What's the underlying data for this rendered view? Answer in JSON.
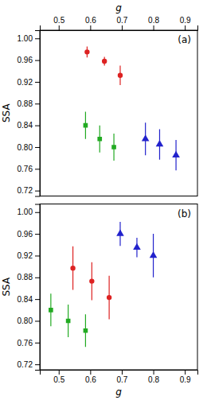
{
  "chart_data": [
    {
      "type": "scatter",
      "xlabel": "g",
      "ylabel": "SSA",
      "annotation": "(a)",
      "grid": false,
      "xlim": [
        0.44,
        0.94
      ],
      "xticks": [
        0.5,
        0.6,
        0.7,
        0.8,
        0.9
      ],
      "ylim": [
        0.71,
        1.015
      ],
      "yticks": [
        0.72,
        0.76,
        {
          "value": 0.8,
          "label": "0.80"
        },
        0.84,
        0.88,
        0.92,
        0.96,
        {
          "value": 1.0,
          "label": "1.00"
        }
      ],
      "series": [
        {
          "color": "#dd2222",
          "marker": "circle",
          "x": [
            0.59,
            0.645,
            0.695
          ],
          "values": [
            0.975,
            0.958,
            0.932
          ],
          "yerr_lo": [
            0.01,
            0.008,
            0.018
          ],
          "yerr_hi": [
            0.01,
            0.008,
            0.018
          ]
        },
        {
          "color": "#22aa22",
          "marker": "square",
          "x": [
            0.585,
            0.63,
            0.675
          ],
          "values": [
            0.84,
            0.815,
            0.8
          ],
          "yerr_lo": [
            0.025,
            0.025,
            0.025
          ],
          "yerr_hi": [
            0.025,
            0.025,
            0.025
          ]
        },
        {
          "color": "#2222cc",
          "marker": "triangle",
          "x": [
            0.775,
            0.82,
            0.872
          ],
          "values": [
            0.815,
            0.805,
            0.785
          ],
          "yerr_lo": [
            0.03,
            0.028,
            0.028
          ],
          "yerr_hi": [
            0.03,
            0.028,
            0.028
          ]
        }
      ]
    },
    {
      "type": "scatter",
      "xlabel": "g",
      "ylabel": "SSA",
      "annotation": "(b)",
      "grid": false,
      "xlim": [
        0.44,
        0.94
      ],
      "xticks": [
        0.5,
        0.6,
        0.7,
        0.8,
        0.9
      ],
      "ylim": [
        0.71,
        1.015
      ],
      "yticks": [
        0.72,
        0.76,
        {
          "value": 0.8,
          "label": "0.80"
        },
        0.84,
        0.88,
        0.92,
        0.96,
        {
          "value": 1.0,
          "label": "1.00"
        }
      ],
      "series": [
        {
          "color": "#dd2222",
          "marker": "circle",
          "x": [
            0.545,
            0.605,
            0.66
          ],
          "values": [
            0.897,
            0.873,
            0.843
          ],
          "yerr_lo": [
            0.04,
            0.035,
            0.04
          ],
          "yerr_hi": [
            0.04,
            0.035,
            0.04
          ]
        },
        {
          "color": "#22aa22",
          "marker": "square",
          "x": [
            0.475,
            0.53,
            0.585
          ],
          "values": [
            0.82,
            0.8,
            0.782
          ],
          "yerr_lo": [
            0.03,
            0.03,
            0.03
          ],
          "yerr_hi": [
            0.03,
            0.03,
            0.03
          ]
        },
        {
          "color": "#2222cc",
          "marker": "triangle",
          "x": [
            0.695,
            0.748,
            0.8
          ],
          "values": [
            0.96,
            0.935,
            0.92
          ],
          "yerr_lo": [
            0.022,
            0.018,
            0.04
          ],
          "yerr_hi": [
            0.022,
            0.018,
            0.04
          ]
        }
      ]
    }
  ]
}
